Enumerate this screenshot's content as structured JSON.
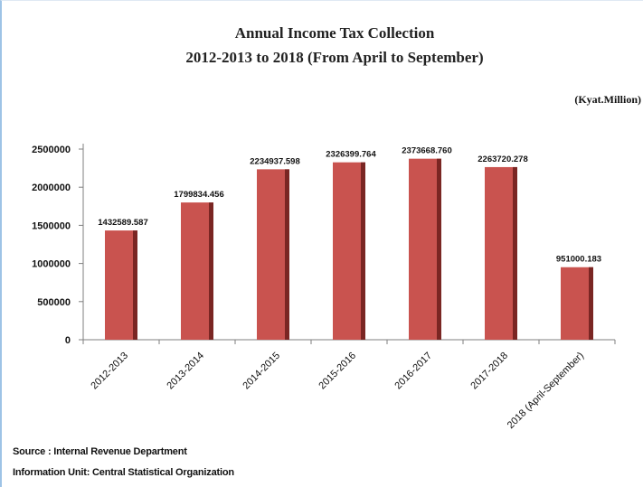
{
  "chart_data": {
    "type": "bar",
    "title": "Annual Income Tax Collection",
    "subtitle": "2012-2013 to 2018 (From April to September)",
    "unit_label": "(Kyat.Million)",
    "categories": [
      "2012-2013",
      "2013-2014",
      "2014-2015",
      "2015-2016",
      "2016-2017",
      "2017-2018",
      "2018 (April-September)"
    ],
    "values": [
      1432589.587,
      1799834.456,
      2234937.598,
      2326399.764,
      2373668.76,
      2263720.278,
      951000.183
    ],
    "value_labels": [
      "1432589.587",
      "1799834.456",
      "2234937.598",
      "2326399.764",
      "2373668.760",
      "2263720.278",
      "951000.183"
    ],
    "y_ticks": [
      "0",
      "500000",
      "1000000",
      "1500000",
      "2000000",
      "2500000"
    ],
    "ylim": [
      0,
      2500000
    ],
    "grid": false,
    "legend": "none",
    "bar_color": "#c9534f",
    "bar_shadow_color": "#7a2623"
  },
  "footer": {
    "source": "Source : Internal Revenue Department",
    "info_unit": "Information Unit: Central Statistical Organization"
  }
}
